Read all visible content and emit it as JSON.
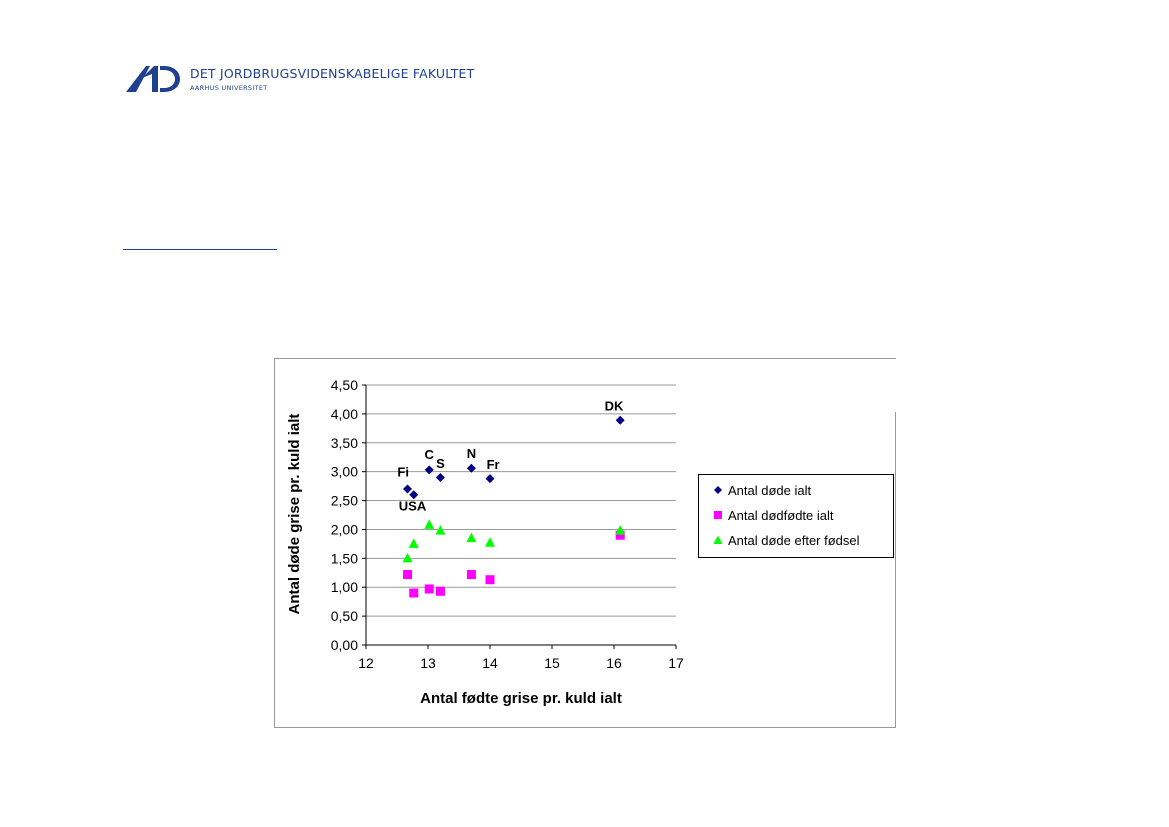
{
  "header": {
    "org_name": "DET JORDBRUGSVIDENSKABELIGE FAKULTET",
    "university": "AARHUS UNIVERSITET",
    "logo_icon": "au-logo-icon",
    "brand_color": "#1f3f8f"
  },
  "chart_data": {
    "type": "scatter",
    "title": "",
    "xlabel": "Antal fødte grise pr. kuld ialt",
    "ylabel": "Antal døde grise pr. kuld ialt",
    "xlim": [
      12,
      17
    ],
    "ylim": [
      0,
      4.5
    ],
    "x_ticks": [
      "12",
      "13",
      "14",
      "15",
      "16",
      "17"
    ],
    "y_ticks": [
      "0,00",
      "0,50",
      "1,00",
      "1,50",
      "2,00",
      "2,50",
      "3,00",
      "3,50",
      "4,00",
      "4,50"
    ],
    "grid": "horizontal",
    "legend_position": "right",
    "series": [
      {
        "name": "Antal døde ialt",
        "marker": "diamond",
        "color": "#000080",
        "points": [
          {
            "x": 12.67,
            "y": 2.7
          },
          {
            "x": 12.77,
            "y": 2.6
          },
          {
            "x": 13.02,
            "y": 3.03
          },
          {
            "x": 13.2,
            "y": 2.9
          },
          {
            "x": 13.7,
            "y": 3.06
          },
          {
            "x": 14.0,
            "y": 2.88
          },
          {
            "x": 16.1,
            "y": 3.89
          }
        ]
      },
      {
        "name": "Antal dødfødte ialt",
        "marker": "square",
        "color": "#ff00ff",
        "points": [
          {
            "x": 12.67,
            "y": 1.22
          },
          {
            "x": 12.77,
            "y": 0.9
          },
          {
            "x": 13.02,
            "y": 0.97
          },
          {
            "x": 13.2,
            "y": 0.93
          },
          {
            "x": 13.7,
            "y": 1.22
          },
          {
            "x": 14.0,
            "y": 1.13
          },
          {
            "x": 16.1,
            "y": 1.9
          }
        ]
      },
      {
        "name": "Antal døde efter fødsel",
        "marker": "triangle",
        "color": "#00ff00",
        "points": [
          {
            "x": 12.67,
            "y": 1.5
          },
          {
            "x": 12.77,
            "y": 1.75
          },
          {
            "x": 13.02,
            "y": 2.08
          },
          {
            "x": 13.2,
            "y": 1.98
          },
          {
            "x": 13.7,
            "y": 1.85
          },
          {
            "x": 14.0,
            "y": 1.77
          },
          {
            "x": 16.1,
            "y": 1.98
          }
        ]
      }
    ],
    "annotations": [
      {
        "text": "Fi",
        "x": 12.6,
        "y": 2.92
      },
      {
        "text": "USA",
        "x": 12.75,
        "y": 2.33
      },
      {
        "text": "C",
        "x": 13.02,
        "y": 3.22
      },
      {
        "text": "S",
        "x": 13.2,
        "y": 3.06
      },
      {
        "text": "N",
        "x": 13.7,
        "y": 3.24
      },
      {
        "text": "Fr",
        "x": 14.05,
        "y": 3.05
      },
      {
        "text": "DK",
        "x": 16.0,
        "y": 4.06
      }
    ]
  }
}
